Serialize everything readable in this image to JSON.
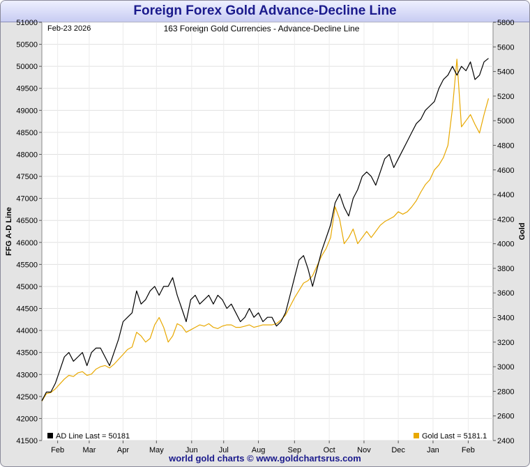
{
  "header": {
    "title": "Foreign Forex Gold Advance-Decline Line"
  },
  "footer": {
    "text": "world gold charts © www.goldchartsrus.com"
  },
  "chart_data": {
    "type": "line",
    "date_label": "Feb-23  2026",
    "subtitle": "163 Foreign Gold Currencies - Advance-Decline Line",
    "y_left_label": "FFG A-D Line",
    "y_right_label": "Gold",
    "y_left_range": [
      41500,
      51000
    ],
    "y_right_range": [
      2400,
      5800
    ],
    "y_left_ticks": [
      "41500",
      "42000",
      "42500",
      "43000",
      "43500",
      "44000",
      "44500",
      "45000",
      "45500",
      "46000",
      "46500",
      "47000",
      "47500",
      "48000",
      "48500",
      "49000",
      "49500",
      "50000",
      "50500",
      "51000"
    ],
    "y_right_ticks": [
      "2400",
      "2600",
      "2800",
      "3000",
      "3200",
      "3400",
      "3600",
      "3800",
      "4000",
      "4200",
      "4400",
      "4600",
      "4800",
      "5000",
      "5200",
      "5400",
      "5600",
      "5800"
    ],
    "x_range": [
      0,
      100
    ],
    "x_ticks": [
      {
        "label": "Feb",
        "x": 3.5
      },
      {
        "label": "Mar",
        "x": 10.5
      },
      {
        "label": "Apr",
        "x": 18.0
      },
      {
        "label": "May",
        "x": 25.4
      },
      {
        "label": "Jun",
        "x": 33.2
      },
      {
        "label": "Jul",
        "x": 40.3
      },
      {
        "label": "Aug",
        "x": 48.0
      },
      {
        "label": "Sep",
        "x": 56.0
      },
      {
        "label": "Oct",
        "x": 63.7
      },
      {
        "label": "Nov",
        "x": 71.4
      },
      {
        "label": "Dec",
        "x": 79.0
      },
      {
        "label": "Jan",
        "x": 86.7
      },
      {
        "label": "Feb",
        "x": 94.5
      }
    ],
    "grid": true,
    "series": [
      {
        "name": "AD Line",
        "legend": "AD Line  Last = 50181",
        "axis": "left",
        "color": "#000000",
        "points": [
          [
            0,
            42400
          ],
          [
            1,
            42600
          ],
          [
            2,
            42600
          ],
          [
            3,
            42800
          ],
          [
            4,
            43100
          ],
          [
            5,
            43400
          ],
          [
            6,
            43500
          ],
          [
            7,
            43300
          ],
          [
            8,
            43400
          ],
          [
            9,
            43500
          ],
          [
            10,
            43200
          ],
          [
            11,
            43500
          ],
          [
            12,
            43600
          ],
          [
            13,
            43600
          ],
          [
            14,
            43400
          ],
          [
            15,
            43200
          ],
          [
            16,
            43500
          ],
          [
            17,
            43800
          ],
          [
            18,
            44200
          ],
          [
            19,
            44300
          ],
          [
            20,
            44400
          ],
          [
            21,
            44900
          ],
          [
            22,
            44600
          ],
          [
            23,
            44700
          ],
          [
            24,
            44900
          ],
          [
            25,
            45000
          ],
          [
            26,
            44800
          ],
          [
            27,
            45000
          ],
          [
            28,
            45000
          ],
          [
            29,
            45200
          ],
          [
            30,
            44800
          ],
          [
            31,
            44500
          ],
          [
            32,
            44200
          ],
          [
            33,
            44700
          ],
          [
            34,
            44800
          ],
          [
            35,
            44600
          ],
          [
            36,
            44700
          ],
          [
            37,
            44800
          ],
          [
            38,
            44600
          ],
          [
            39,
            44800
          ],
          [
            40,
            44700
          ],
          [
            41,
            44500
          ],
          [
            42,
            44600
          ],
          [
            43,
            44400
          ],
          [
            44,
            44200
          ],
          [
            45,
            44300
          ],
          [
            46,
            44500
          ],
          [
            47,
            44300
          ],
          [
            48,
            44400
          ],
          [
            49,
            44200
          ],
          [
            50,
            44300
          ],
          [
            51,
            44300
          ],
          [
            52,
            44100
          ],
          [
            53,
            44200
          ],
          [
            54,
            44400
          ],
          [
            55,
            44800
          ],
          [
            56,
            45200
          ],
          [
            57,
            45600
          ],
          [
            58,
            45700
          ],
          [
            59,
            45400
          ],
          [
            60,
            45000
          ],
          [
            61,
            45400
          ],
          [
            62,
            45800
          ],
          [
            63,
            46100
          ],
          [
            64,
            46400
          ],
          [
            65,
            46900
          ],
          [
            66,
            47100
          ],
          [
            67,
            46800
          ],
          [
            68,
            46600
          ],
          [
            69,
            47000
          ],
          [
            70,
            47200
          ],
          [
            71,
            47500
          ],
          [
            72,
            47600
          ],
          [
            73,
            47500
          ],
          [
            74,
            47300
          ],
          [
            75,
            47600
          ],
          [
            76,
            47900
          ],
          [
            77,
            48000
          ],
          [
            78,
            47700
          ],
          [
            79,
            47900
          ],
          [
            80,
            48100
          ],
          [
            81,
            48300
          ],
          [
            82,
            48500
          ],
          [
            83,
            48700
          ],
          [
            84,
            48800
          ],
          [
            85,
            49000
          ],
          [
            86,
            49100
          ],
          [
            87,
            49200
          ],
          [
            88,
            49500
          ],
          [
            89,
            49700
          ],
          [
            90,
            49800
          ],
          [
            91,
            50000
          ],
          [
            92,
            49800
          ],
          [
            93,
            50000
          ],
          [
            94,
            49900
          ],
          [
            95,
            50100
          ],
          [
            96,
            49700
          ],
          [
            97,
            49800
          ],
          [
            98,
            50100
          ],
          [
            99,
            50181
          ]
        ]
      },
      {
        "name": "Gold",
        "legend": "Gold  Last = 5181.1",
        "axis": "right",
        "color": "#e8a800",
        "points": [
          [
            0,
            2720
          ],
          [
            1,
            2780
          ],
          [
            2,
            2790
          ],
          [
            3,
            2820
          ],
          [
            4,
            2860
          ],
          [
            5,
            2900
          ],
          [
            6,
            2930
          ],
          [
            7,
            2920
          ],
          [
            8,
            2950
          ],
          [
            9,
            2960
          ],
          [
            10,
            2930
          ],
          [
            11,
            2940
          ],
          [
            12,
            2980
          ],
          [
            13,
            3000
          ],
          [
            14,
            3010
          ],
          [
            15,
            2990
          ],
          [
            16,
            3020
          ],
          [
            17,
            3060
          ],
          [
            18,
            3100
          ],
          [
            19,
            3140
          ],
          [
            20,
            3160
          ],
          [
            21,
            3280
          ],
          [
            22,
            3250
          ],
          [
            23,
            3200
          ],
          [
            24,
            3230
          ],
          [
            25,
            3340
          ],
          [
            26,
            3400
          ],
          [
            27,
            3320
          ],
          [
            28,
            3200
          ],
          [
            29,
            3250
          ],
          [
            30,
            3350
          ],
          [
            31,
            3330
          ],
          [
            32,
            3280
          ],
          [
            33,
            3300
          ],
          [
            34,
            3320
          ],
          [
            35,
            3340
          ],
          [
            36,
            3330
          ],
          [
            37,
            3350
          ],
          [
            38,
            3320
          ],
          [
            39,
            3310
          ],
          [
            40,
            3330
          ],
          [
            41,
            3340
          ],
          [
            42,
            3340
          ],
          [
            43,
            3320
          ],
          [
            44,
            3320
          ],
          [
            45,
            3330
          ],
          [
            46,
            3340
          ],
          [
            47,
            3320
          ],
          [
            48,
            3330
          ],
          [
            49,
            3340
          ],
          [
            50,
            3340
          ],
          [
            51,
            3340
          ],
          [
            52,
            3350
          ],
          [
            53,
            3380
          ],
          [
            54,
            3420
          ],
          [
            55,
            3490
          ],
          [
            56,
            3560
          ],
          [
            57,
            3620
          ],
          [
            58,
            3680
          ],
          [
            59,
            3700
          ],
          [
            60,
            3740
          ],
          [
            61,
            3820
          ],
          [
            62,
            3900
          ],
          [
            63,
            3960
          ],
          [
            64,
            4050
          ],
          [
            65,
            4300
          ],
          [
            66,
            4200
          ],
          [
            67,
            4000
          ],
          [
            68,
            4050
          ],
          [
            69,
            4120
          ],
          [
            70,
            4000
          ],
          [
            71,
            4050
          ],
          [
            72,
            4100
          ],
          [
            73,
            4050
          ],
          [
            74,
            4100
          ],
          [
            75,
            4150
          ],
          [
            76,
            4180
          ],
          [
            77,
            4200
          ],
          [
            78,
            4220
          ],
          [
            79,
            4260
          ],
          [
            80,
            4240
          ],
          [
            81,
            4260
          ],
          [
            82,
            4300
          ],
          [
            83,
            4350
          ],
          [
            84,
            4420
          ],
          [
            85,
            4480
          ],
          [
            86,
            4520
          ],
          [
            87,
            4600
          ],
          [
            88,
            4640
          ],
          [
            89,
            4700
          ],
          [
            90,
            4800
          ],
          [
            91,
            5100
          ],
          [
            92,
            5500
          ],
          [
            93,
            4950
          ],
          [
            94,
            5000
          ],
          [
            95,
            5050
          ],
          [
            96,
            4970
          ],
          [
            97,
            4900
          ],
          [
            98,
            5050
          ],
          [
            99,
            5181.1
          ]
        ]
      }
    ]
  }
}
